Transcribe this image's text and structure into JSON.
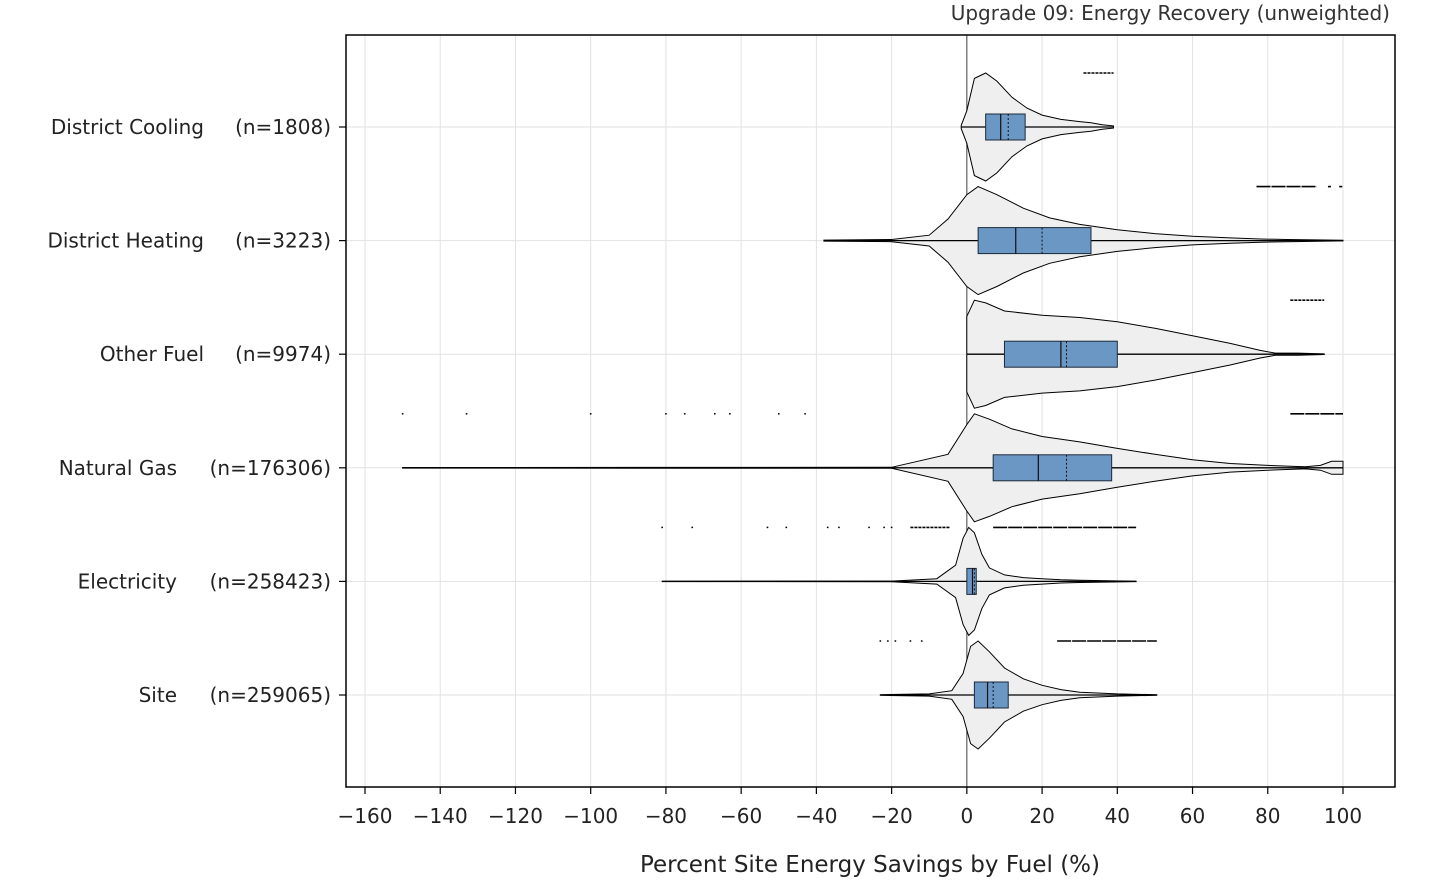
{
  "chart_data": {
    "type": "violin",
    "title": "Upgrade 09: Energy Recovery (unweighted)",
    "xlabel": "Percent Site Energy Savings by Fuel (%)",
    "xlim": [
      -164,
      114
    ],
    "xticks": [
      -160,
      -140,
      -120,
      -100,
      -80,
      -60,
      -40,
      -20,
      0,
      20,
      40,
      60,
      80,
      100
    ],
    "xtick_labels": [
      "−160",
      "−140",
      "−120",
      "−100",
      "−80",
      "−60",
      "−40",
      "−20",
      "0",
      "20",
      "40",
      "60",
      "80",
      "100"
    ],
    "grid": true,
    "colors": {
      "box": "#6b97c4",
      "violin": "#efefef",
      "grid": "#e2e2e2",
      "line": "#000000"
    },
    "categories": [
      {
        "name": "District Cooling",
        "n_label": "(n=1808)",
        "whisker": [
          -1.5,
          39
        ],
        "box": [
          5,
          15.5
        ],
        "median": 9,
        "mean": 11,
        "violin": [
          [
            -1.5,
            0.03
          ],
          [
            0,
            0.3
          ],
          [
            2,
            0.9
          ],
          [
            5,
            1.0
          ],
          [
            8,
            0.85
          ],
          [
            12,
            0.55
          ],
          [
            16,
            0.35
          ],
          [
            20,
            0.22
          ],
          [
            25,
            0.14
          ],
          [
            30,
            0.1
          ],
          [
            33,
            0.08
          ],
          [
            36,
            0.04
          ],
          [
            39,
            0.02
          ]
        ],
        "outliers": [
          [
            31,
            39
          ]
        ]
      },
      {
        "name": "District Heating",
        "n_label": "(n=3223)",
        "whisker": [
          -38,
          100
        ],
        "box": [
          3,
          33
        ],
        "median": 13,
        "mean": 20,
        "violin": [
          [
            -38,
            0.01
          ],
          [
            -20,
            0.02
          ],
          [
            -10,
            0.1
          ],
          [
            -5,
            0.4
          ],
          [
            0,
            0.85
          ],
          [
            3,
            1.0
          ],
          [
            8,
            0.85
          ],
          [
            15,
            0.6
          ],
          [
            22,
            0.42
          ],
          [
            30,
            0.3
          ],
          [
            40,
            0.2
          ],
          [
            50,
            0.13
          ],
          [
            60,
            0.08
          ],
          [
            70,
            0.05
          ],
          [
            78,
            0.03
          ],
          [
            85,
            0.02
          ],
          [
            100,
            0.005
          ]
        ],
        "outliers": [
          [
            77,
            93
          ],
          [
            96,
            97
          ],
          [
            99,
            100
          ]
        ]
      },
      {
        "name": "Other Fuel",
        "n_label": "(n=9974)",
        "whisker": [
          0,
          95
        ],
        "box": [
          10,
          40
        ],
        "median": 25,
        "mean": 26.5,
        "violin": [
          [
            0,
            0.7
          ],
          [
            2,
            1.0
          ],
          [
            5,
            0.95
          ],
          [
            10,
            0.8
          ],
          [
            20,
            0.72
          ],
          [
            30,
            0.68
          ],
          [
            40,
            0.6
          ],
          [
            50,
            0.48
          ],
          [
            60,
            0.34
          ],
          [
            70,
            0.2
          ],
          [
            78,
            0.07
          ],
          [
            82,
            0.02
          ],
          [
            88,
            0.02
          ],
          [
            95,
            0.005
          ]
        ],
        "outliers": [
          [
            86,
            95
          ]
        ]
      },
      {
        "name": "Natural Gas",
        "n_label": "(n=176306)",
        "whisker": [
          -150,
          100
        ],
        "box": [
          7,
          38.5
        ],
        "median": 19,
        "mean": 26.5,
        "violin": [
          [
            -150,
            0.005
          ],
          [
            -20,
            0.01
          ],
          [
            -5,
            0.25
          ],
          [
            0,
            0.8
          ],
          [
            2,
            1.0
          ],
          [
            6,
            0.9
          ],
          [
            12,
            0.72
          ],
          [
            20,
            0.58
          ],
          [
            30,
            0.48
          ],
          [
            40,
            0.36
          ],
          [
            50,
            0.25
          ],
          [
            60,
            0.15
          ],
          [
            70,
            0.08
          ],
          [
            80,
            0.045
          ],
          [
            86,
            0.03
          ],
          [
            90,
            0.02
          ],
          [
            94,
            0.045
          ],
          [
            97,
            0.12
          ],
          [
            99,
            0.12
          ],
          [
            100,
            0.12
          ]
        ],
        "outliers": [
          [
            -150,
            -150
          ],
          [
            -133,
            -133
          ],
          [
            -100,
            -100
          ],
          [
            -80,
            -80
          ],
          [
            -75,
            -75
          ],
          [
            -67,
            -67
          ],
          [
            -63,
            -63
          ],
          [
            -50,
            -50
          ],
          [
            -43,
            -43
          ],
          [
            86,
            100
          ]
        ]
      },
      {
        "name": "Electricity",
        "n_label": "(n=258423)",
        "whisker": [
          -81,
          45
        ],
        "box": [
          0,
          2.5
        ],
        "median": 1.5,
        "mean": 2,
        "violin": [
          [
            -81,
            0.003
          ],
          [
            -20,
            0.005
          ],
          [
            -8,
            0.05
          ],
          [
            -3,
            0.3
          ],
          [
            -1,
            0.8
          ],
          [
            0.5,
            1.0
          ],
          [
            2,
            0.9
          ],
          [
            4,
            0.5
          ],
          [
            6,
            0.25
          ],
          [
            10,
            0.12
          ],
          [
            15,
            0.07
          ],
          [
            20,
            0.05
          ],
          [
            25,
            0.03
          ],
          [
            30,
            0.02
          ],
          [
            45,
            0.003
          ]
        ],
        "outliers": [
          [
            -81,
            -81
          ],
          [
            -73,
            -73
          ],
          [
            -53,
            -53
          ],
          [
            -48,
            -48
          ],
          [
            -37,
            -37
          ],
          [
            -34,
            -34
          ],
          [
            -26,
            -26
          ],
          [
            -22,
            -22
          ],
          [
            -20,
            -20
          ],
          [
            -15,
            -4.5
          ],
          [
            7,
            45
          ]
        ]
      },
      {
        "name": "Site",
        "n_label": "(n=259065)",
        "whisker": [
          -23,
          50.5
        ],
        "box": [
          2,
          11
        ],
        "median": 5.5,
        "mean": 7,
        "violin": [
          [
            -23,
            0.005
          ],
          [
            -10,
            0.02
          ],
          [
            -4,
            0.08
          ],
          [
            -1,
            0.4
          ],
          [
            1,
            0.9
          ],
          [
            3,
            1.0
          ],
          [
            6,
            0.8
          ],
          [
            10,
            0.5
          ],
          [
            15,
            0.3
          ],
          [
            20,
            0.18
          ],
          [
            25,
            0.1
          ],
          [
            30,
            0.05
          ],
          [
            40,
            0.02
          ],
          [
            50.5,
            0.005
          ]
        ],
        "outliers": [
          [
            -23,
            -23
          ],
          [
            -21,
            -21
          ],
          [
            -19,
            -19
          ],
          [
            -15,
            -15
          ],
          [
            -12,
            -12
          ],
          [
            24,
            50.5
          ]
        ]
      }
    ]
  }
}
